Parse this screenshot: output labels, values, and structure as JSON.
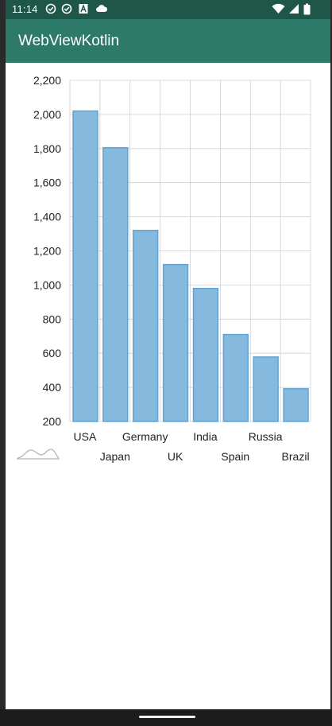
{
  "status_bar": {
    "time": "11:14",
    "left_icons": [
      "check-circle-icon",
      "check-circle-icon",
      "font-a-icon",
      "cloud-icon"
    ],
    "right_icons": [
      "wifi-icon",
      "signal-icon",
      "battery-icon"
    ]
  },
  "app_bar": {
    "title": "WebViewKotlin"
  },
  "colors": {
    "status_bar": "#1e5648",
    "app_bar": "#2d7a68",
    "bar_fill": "#85b9dd",
    "bar_stroke": "#5fa4d4",
    "grid": "#d0d0d0"
  },
  "chart_data": {
    "type": "bar",
    "categories": [
      "USA",
      "Japan",
      "Germany",
      "UK",
      "India",
      "Spain",
      "Russia",
      "Brazil"
    ],
    "values": [
      2020,
      1805,
      1320,
      1120,
      980,
      710,
      578,
      392
    ],
    "title": "",
    "xlabel": "",
    "ylabel": "",
    "ylim": [
      200,
      2200
    ],
    "yticks": [
      2200,
      2000,
      1800,
      1600,
      1400,
      1200,
      1000,
      800,
      600,
      400,
      200
    ],
    "ytick_labels": [
      "2,200",
      "2,000",
      "1,800",
      "1,600",
      "1,400",
      "1,200",
      "1,000",
      "800",
      "600",
      "400",
      "200"
    ],
    "grid": true,
    "range_selector": "mini-area-icon"
  }
}
